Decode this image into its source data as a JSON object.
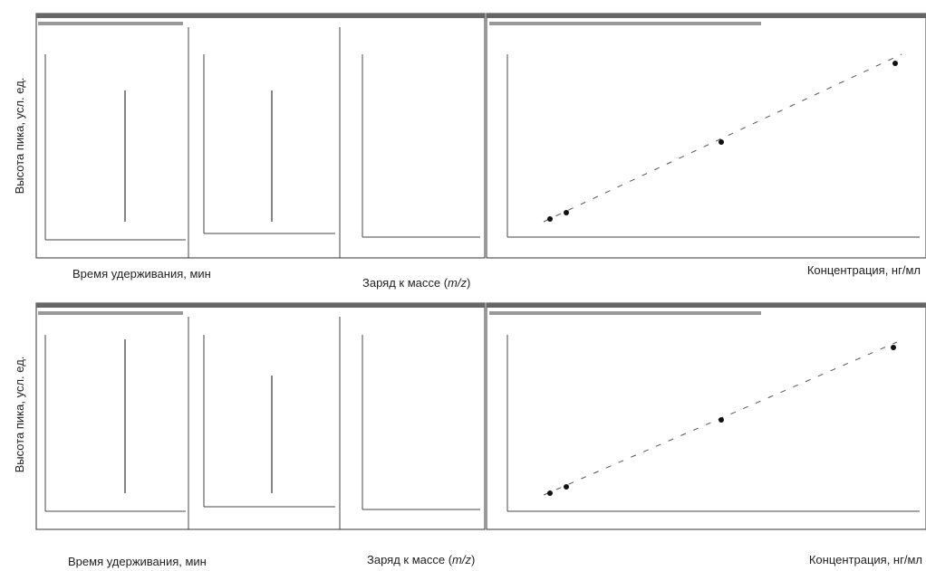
{
  "rows": [
    {
      "y_axis_label": "Высота пика, усл. ед.",
      "x_labels": {
        "time": "Время удерживания, мин",
        "mz": [
          "Заряд к массе (",
          "m/z",
          ")"
        ],
        "concentration": "Концентрация, нг/мл"
      }
    },
    {
      "y_axis_label": "Высота пика, усл. ед.",
      "x_labels": {
        "time": "Время удерживания, мин",
        "mz": [
          "Заряд к массе (",
          "m/z",
          ")"
        ],
        "concentration": "Концентрация, нг/мл"
      }
    }
  ]
}
